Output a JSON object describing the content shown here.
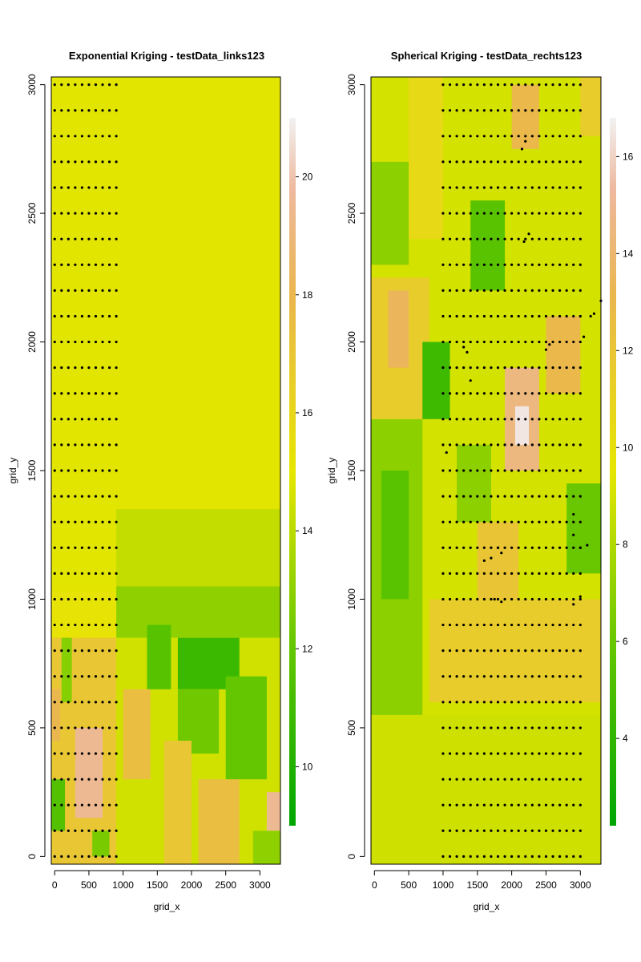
{
  "chart_data": [
    {
      "type": "heatmap",
      "title": "Exponential Kriging - testData_links123",
      "xlabel": "grid_x",
      "ylabel": "grid_y",
      "xlim": [
        -50,
        3300
      ],
      "ylim": [
        -30,
        3030
      ],
      "x_ticks": [
        0,
        500,
        1000,
        1500,
        2000,
        2500,
        3000
      ],
      "x_tick_labels": [
        "0",
        "500",
        "1000",
        "1500",
        "2000",
        "2500",
        "3000"
      ],
      "y_ticks": [
        0,
        500,
        1000,
        1500,
        2000,
        2500,
        3000
      ],
      "y_tick_labels": [
        "0",
        "500",
        "1000",
        "1500",
        "2000",
        "2500",
        "3000"
      ],
      "colorbar": {
        "min": 9.0,
        "max": 21.0,
        "ticks": [
          10,
          12,
          14,
          16,
          18,
          20
        ],
        "tick_labels": [
          "10",
          "12",
          "14",
          "16",
          "18",
          "20"
        ],
        "palette": "terrain"
      },
      "grid": false,
      "background_value": 14.9,
      "field_regions": [
        {
          "x": [
            -50,
            900
          ],
          "y": [
            850,
            1030
          ],
          "value": 15.2
        },
        {
          "x": [
            -50,
            900
          ],
          "y": [
            -30,
            850
          ],
          "value": 17.0
        },
        {
          "x": [
            300,
            700
          ],
          "y": [
            150,
            500
          ],
          "value": 19.5
        },
        {
          "x": [
            -50,
            150
          ],
          "y": [
            100,
            300
          ],
          "value": 11.5
        },
        {
          "x": [
            100,
            250
          ],
          "y": [
            600,
            850
          ],
          "value": 12.8
        },
        {
          "x": [
            550,
            800
          ],
          "y": [
            0,
            100
          ],
          "value": 12.5
        },
        {
          "x": [
            -50,
            80
          ],
          "y": [
            450,
            650
          ],
          "value": 18.0
        },
        {
          "x": [
            900,
            3300
          ],
          "y": [
            1050,
            1350
          ],
          "value": 14.2
        },
        {
          "x": [
            900,
            3300
          ],
          "y": [
            850,
            1050
          ],
          "value": 13.0
        },
        {
          "x": [
            900,
            3300
          ],
          "y": [
            -30,
            850
          ],
          "value": 14.5
        },
        {
          "x": [
            1350,
            1700
          ],
          "y": [
            650,
            900
          ],
          "value": 11.6
        },
        {
          "x": [
            1800,
            2700
          ],
          "y": [
            650,
            850
          ],
          "value": 10.8
        },
        {
          "x": [
            1800,
            2400
          ],
          "y": [
            400,
            650
          ],
          "value": 12.3
        },
        {
          "x": [
            2500,
            3100
          ],
          "y": [
            300,
            700
          ],
          "value": 12.0
        },
        {
          "x": [
            1000,
            1400
          ],
          "y": [
            300,
            650
          ],
          "value": 17.5
        },
        {
          "x": [
            1600,
            2000
          ],
          "y": [
            -30,
            450
          ],
          "value": 17.0
        },
        {
          "x": [
            2100,
            2700
          ],
          "y": [
            -30,
            300
          ],
          "value": 17.5
        },
        {
          "x": [
            3100,
            3300
          ],
          "y": [
            100,
            250
          ],
          "value": 19.5
        },
        {
          "x": [
            2900,
            3300
          ],
          "y": [
            -30,
            100
          ],
          "value": 13.0
        }
      ],
      "points": {
        "x": [
          0,
          100,
          200,
          300,
          400,
          500,
          600,
          700,
          800,
          900
        ],
        "y": [
          0,
          100,
          200,
          300,
          400,
          500,
          600,
          700,
          800,
          900,
          1000,
          1100,
          1200,
          1300,
          1400,
          1500,
          1600,
          1700,
          1800,
          1900,
          2000,
          2100,
          2200,
          2300,
          2400,
          2500,
          2600,
          2700,
          2800,
          2900,
          3000
        ]
      }
    },
    {
      "type": "heatmap",
      "title": "Spherical Kriging - testData_rechts123",
      "xlabel": "grid_x",
      "ylabel": "grid_y",
      "xlim": [
        -50,
        3300
      ],
      "ylim": [
        -30,
        3030
      ],
      "x_ticks": [
        0,
        500,
        1000,
        1500,
        2000,
        2500,
        3000
      ],
      "x_tick_labels": [
        "0",
        "500",
        "1000",
        "1500",
        "2000",
        "2500",
        "3000"
      ],
      "y_ticks": [
        0,
        500,
        1000,
        1500,
        2000,
        2500,
        3000
      ],
      "y_tick_labels": [
        "0",
        "500",
        "1000",
        "1500",
        "2000",
        "2500",
        "3000"
      ],
      "colorbar": {
        "min": 2.2,
        "max": 16.8,
        "ticks": [
          4,
          6,
          8,
          10,
          12,
          14,
          16
        ],
        "tick_labels": [
          "4",
          "6",
          "8",
          "10",
          "12",
          "14",
          "16"
        ],
        "palette": "terrain"
      },
      "grid": false,
      "background_value": 9.0,
      "field_regions": [
        {
          "x": [
            -50,
            3300
          ],
          "y": [
            -30,
            550
          ],
          "value": 8.8
        },
        {
          "x": [
            -50,
            700
          ],
          "y": [
            550,
            1700
          ],
          "value": 7.0
        },
        {
          "x": [
            100,
            500
          ],
          "y": [
            1000,
            1500
          ],
          "value": 5.5
        },
        {
          "x": [
            -50,
            800
          ],
          "y": [
            1700,
            2250
          ],
          "value": 11.5
        },
        {
          "x": [
            200,
            500
          ],
          "y": [
            1900,
            2200
          ],
          "value": 13.5
        },
        {
          "x": [
            -50,
            500
          ],
          "y": [
            2300,
            2700
          ],
          "value": 7.0
        },
        {
          "x": [
            500,
            1000
          ],
          "y": [
            2400,
            3030
          ],
          "value": 10.5
        },
        {
          "x": [
            700,
            1100
          ],
          "y": [
            1700,
            2000
          ],
          "value": 4.5
        },
        {
          "x": [
            800,
            3300
          ],
          "y": [
            600,
            1000
          ],
          "value": 11.5
        },
        {
          "x": [
            1500,
            2100
          ],
          "y": [
            1000,
            1300
          ],
          "value": 12.0
        },
        {
          "x": [
            1900,
            2400
          ],
          "y": [
            1500,
            1900
          ],
          "value": 14.5
        },
        {
          "x": [
            2050,
            2250
          ],
          "y": [
            1600,
            1750
          ],
          "value": 16.5
        },
        {
          "x": [
            2500,
            3000
          ],
          "y": [
            1800,
            2100
          ],
          "value": 13.0
        },
        {
          "x": [
            2800,
            3300
          ],
          "y": [
            1100,
            1450
          ],
          "value": 6.0
        },
        {
          "x": [
            1400,
            1900
          ],
          "y": [
            2200,
            2550
          ],
          "value": 5.5
        },
        {
          "x": [
            2000,
            2400
          ],
          "y": [
            2750,
            3000
          ],
          "value": 13.0
        },
        {
          "x": [
            3000,
            3300
          ],
          "y": [
            2800,
            3030
          ],
          "value": 11.5
        },
        {
          "x": [
            1200,
            1700
          ],
          "y": [
            1300,
            1600
          ],
          "value": 7.0
        }
      ],
      "points": {
        "x": [
          1000,
          1100,
          1200,
          1300,
          1400,
          1500,
          1600,
          1700,
          1800,
          1900,
          2000,
          2100,
          2200,
          2300,
          2400,
          2500,
          2600,
          2700,
          2800,
          2900,
          3000
        ],
        "y": [
          0,
          100,
          200,
          300,
          400,
          500,
          600,
          700,
          800,
          900,
          1000,
          1100,
          1200,
          1300,
          1400,
          1500,
          1600,
          1700,
          1800,
          1900,
          2000,
          2100,
          2200,
          2300,
          2400,
          2500,
          2600,
          2700,
          2800,
          2900,
          3000
        ]
      },
      "extra_points": [
        [
          1050,
          1570
        ],
        [
          1350,
          1960
        ],
        [
          1400,
          1850
        ],
        [
          1300,
          1980
        ],
        [
          1600,
          1150
        ],
        [
          1700,
          1160
        ],
        [
          1800,
          1200
        ],
        [
          1850,
          1180
        ],
        [
          1750,
          1000
        ],
        [
          1850,
          990
        ],
        [
          2150,
          2750
        ],
        [
          2200,
          2780
        ],
        [
          2250,
          2420
        ],
        [
          2180,
          2390
        ],
        [
          2500,
          1970
        ],
        [
          2550,
          1990
        ],
        [
          2900,
          1330
        ],
        [
          2900,
          1250
        ],
        [
          3000,
          1200
        ],
        [
          3100,
          1210
        ],
        [
          3050,
          2020
        ],
        [
          3150,
          2100
        ],
        [
          3200,
          2110
        ],
        [
          3300,
          2160
        ],
        [
          2900,
          980
        ],
        [
          3000,
          1010
        ]
      ]
    }
  ]
}
